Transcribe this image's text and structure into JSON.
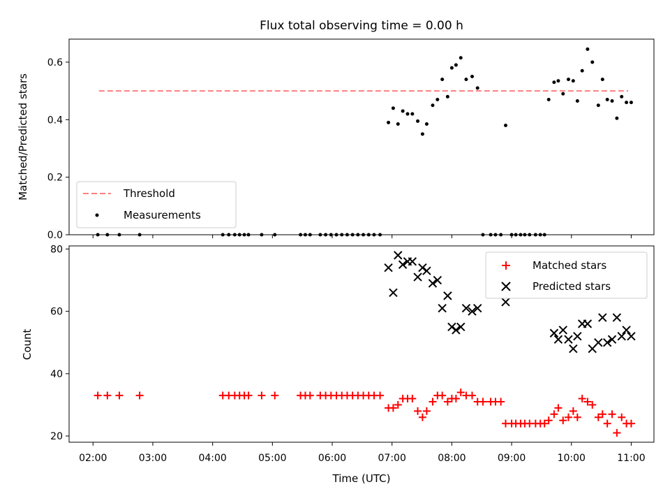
{
  "title": "Flux total observing time = 0.00 h",
  "colors": {
    "threshold": "#ff7f7f",
    "measurement": "#000000",
    "matched": "#ff0000",
    "predicted": "#000000"
  },
  "chart_data": [
    {
      "type": "scatter",
      "ylabel": "Matched/Predicted stars",
      "xlim": [
        1.6,
        11.38
      ],
      "ylim": [
        0.0,
        0.68
      ],
      "yticks": [
        0.0,
        0.2,
        0.4,
        0.6
      ],
      "ytick_labels": [
        "0.0",
        "0.2",
        "0.4",
        "0.6"
      ],
      "threshold": {
        "name": "Threshold",
        "y": 0.5,
        "x": [
          2.1,
          10.95
        ]
      },
      "series": [
        {
          "name": "Measurements",
          "x": [
            2.08,
            2.24,
            2.44,
            2.78,
            4.17,
            4.27,
            4.37,
            4.45,
            4.53,
            4.6,
            4.82,
            5.04,
            5.47,
            5.55,
            5.63,
            5.8,
            5.89,
            5.98,
            6.07,
            6.16,
            6.25,
            6.34,
            6.43,
            6.52,
            6.61,
            6.7,
            6.8,
            6.94,
            7.02,
            7.1,
            7.18,
            7.26,
            7.34,
            7.43,
            7.51,
            7.58,
            7.68,
            7.76,
            7.84,
            7.93,
            8.0,
            8.07,
            8.15,
            8.24,
            8.34,
            8.43,
            8.52,
            8.65,
            8.73,
            8.82,
            8.9,
            9.0,
            9.07,
            9.15,
            9.22,
            9.3,
            9.4,
            9.48,
            9.55,
            9.62,
            9.71,
            9.78,
            9.86,
            9.95,
            10.03,
            10.1,
            10.18,
            10.27,
            10.35,
            10.45,
            10.52,
            10.6,
            10.68,
            10.76,
            10.84,
            10.92,
            11.0
          ],
          "y": [
            0,
            0,
            0,
            0,
            0,
            0,
            0,
            0,
            0,
            0,
            0,
            0,
            0,
            0,
            0,
            0,
            0,
            0,
            0,
            0,
            0,
            0,
            0,
            0,
            0,
            0,
            0,
            0.39,
            0.44,
            0.385,
            0.43,
            0.42,
            0.42,
            0.395,
            0.35,
            0.385,
            0.45,
            0.47,
            0.54,
            0.48,
            0.58,
            0.59,
            0.615,
            0.54,
            0.55,
            0.51,
            0,
            0,
            0,
            0,
            0.38,
            0,
            0,
            0,
            0,
            0,
            0,
            0,
            0,
            0.47,
            0.53,
            0.535,
            0.49,
            0.54,
            0.535,
            0.465,
            0.57,
            0.645,
            0.6,
            0.45,
            0.54,
            0.47,
            0.465,
            0.405,
            0.48,
            0.46,
            0.46
          ]
        }
      ]
    },
    {
      "type": "scatter",
      "xlabel": "Time (UTC)",
      "ylabel": "Count",
      "xlim": [
        1.6,
        11.38
      ],
      "ylim": [
        18,
        81
      ],
      "xticks": [
        2,
        3,
        4,
        5,
        6,
        7,
        8,
        9,
        10,
        11
      ],
      "xtick_labels": [
        "02:00",
        "03:00",
        "04:00",
        "05:00",
        "06:00",
        "07:00",
        "08:00",
        "09:00",
        "10:00",
        "11:00"
      ],
      "yticks": [
        20,
        40,
        60,
        80
      ],
      "ytick_labels": [
        "20",
        "40",
        "60",
        "80"
      ],
      "series": [
        {
          "name": "Matched stars",
          "x": [
            2.08,
            2.24,
            2.44,
            2.78,
            4.17,
            4.27,
            4.37,
            4.45,
            4.53,
            4.6,
            4.82,
            5.04,
            5.47,
            5.55,
            5.63,
            5.8,
            5.89,
            5.98,
            6.07,
            6.16,
            6.25,
            6.34,
            6.43,
            6.52,
            6.61,
            6.7,
            6.8,
            6.94,
            7.02,
            7.1,
            7.18,
            7.26,
            7.34,
            7.43,
            7.51,
            7.58,
            7.68,
            7.76,
            7.84,
            7.93,
            8.0,
            8.07,
            8.15,
            8.24,
            8.34,
            8.43,
            8.52,
            8.65,
            8.73,
            8.82,
            8.9,
            9.0,
            9.07,
            9.15,
            9.22,
            9.3,
            9.4,
            9.48,
            9.55,
            9.62,
            9.71,
            9.78,
            9.86,
            9.95,
            10.03,
            10.1,
            10.18,
            10.27,
            10.35,
            10.45,
            10.52,
            10.6,
            10.68,
            10.76,
            10.84,
            10.92,
            11.0
          ],
          "y": [
            33,
            33,
            33,
            33,
            33,
            33,
            33,
            33,
            33,
            33,
            33,
            33,
            33,
            33,
            33,
            33,
            33,
            33,
            33,
            33,
            33,
            33,
            33,
            33,
            33,
            33,
            33,
            29,
            29,
            30,
            32,
            32,
            32,
            28,
            26,
            28,
            31,
            33,
            33,
            31,
            32,
            32,
            34,
            33,
            33,
            31,
            31,
            31,
            31,
            31,
            24,
            24,
            24,
            24,
            24,
            24,
            24,
            24,
            24,
            25,
            27,
            29,
            25,
            26,
            28,
            26,
            32,
            31,
            30,
            26,
            27,
            24,
            27,
            21,
            26,
            24,
            24
          ]
        },
        {
          "name": "Predicted stars",
          "x": [
            6.94,
            7.02,
            7.1,
            7.18,
            7.26,
            7.34,
            7.43,
            7.51,
            7.58,
            7.68,
            7.76,
            7.84,
            7.93,
            8.0,
            8.07,
            8.15,
            8.24,
            8.34,
            8.43,
            8.9,
            9.71,
            9.78,
            9.86,
            9.95,
            10.03,
            10.1,
            10.18,
            10.27,
            10.35,
            10.45,
            10.52,
            10.6,
            10.68,
            10.76,
            10.84,
            10.92,
            11.0
          ],
          "y": [
            74,
            66,
            78,
            75,
            76,
            76,
            71,
            74,
            73,
            69,
            70,
            61,
            65,
            55,
            54,
            55,
            61,
            60,
            61,
            63,
            53,
            51,
            54,
            51,
            48,
            52,
            56,
            56,
            48,
            50,
            58,
            50,
            51,
            58,
            52,
            54,
            52
          ]
        }
      ]
    }
  ]
}
